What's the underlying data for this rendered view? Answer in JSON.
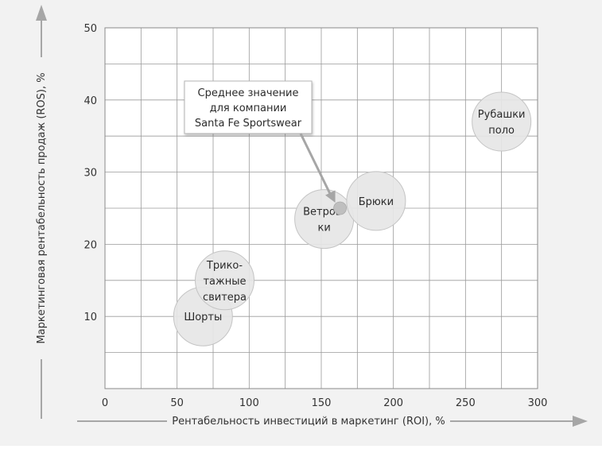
{
  "chart_data": {
    "type": "scatter",
    "xlabel": "Рентабельность инвестиций в маркетинг (ROI), %",
    "ylabel": "Маркетинговая рентабельность продаж (ROS), %",
    "xlim": [
      0,
      300
    ],
    "ylim": [
      0,
      50
    ],
    "x_ticks": [
      0,
      50,
      100,
      150,
      200,
      250,
      300
    ],
    "y_ticks": [
      10,
      20,
      30,
      40,
      50
    ],
    "grid": true,
    "points": [
      {
        "label": [
          "Шорты"
        ],
        "x": 68,
        "y": 10,
        "size": "large"
      },
      {
        "label": [
          "Трико-",
          "тажные",
          "свитера"
        ],
        "x": 83,
        "y": 15,
        "size": "large"
      },
      {
        "label": [
          "Ветров-",
          "ки"
        ],
        "x": 152,
        "y": 23.5,
        "size": "large"
      },
      {
        "label": [
          "Брюки"
        ],
        "x": 188,
        "y": 26,
        "size": "large"
      },
      {
        "label": [
          "Рубашки",
          "поло"
        ],
        "x": 275,
        "y": 37,
        "size": "large"
      },
      {
        "label": [],
        "x": 163,
        "y": 25,
        "size": "small"
      }
    ],
    "annotation": {
      "lines": [
        "Среднее значение",
        "для компании",
        "Santa Fe Sportswear"
      ],
      "points_to": {
        "x": 163,
        "y": 25
      }
    },
    "colors": {
      "background": "#f2f2f2",
      "plot_background": "#ffffff",
      "grid": "#9a9a9a",
      "bubble_fill": "#e6e6e6",
      "bubble_stroke": "#c4c4c4",
      "avg_point": "#bfbfbf",
      "arrow": "#a6a6a6",
      "text": "#333333"
    }
  }
}
